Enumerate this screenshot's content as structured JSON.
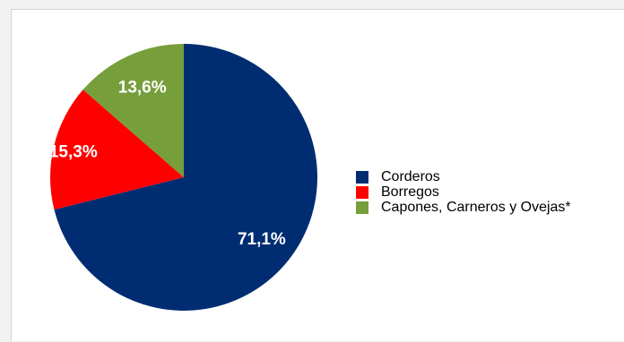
{
  "chart_data": {
    "type": "pie",
    "title": "",
    "categories": [
      "Corderos",
      "Borregos",
      "Capones, Carneros y Ovejas*"
    ],
    "values": [
      71.1,
      15.3,
      13.6
    ],
    "labels": [
      "71,1%",
      "15,3%",
      "13,6%"
    ],
    "colors": [
      "#002d72",
      "#ff0000",
      "#769e3b"
    ],
    "legend_position": "right"
  }
}
